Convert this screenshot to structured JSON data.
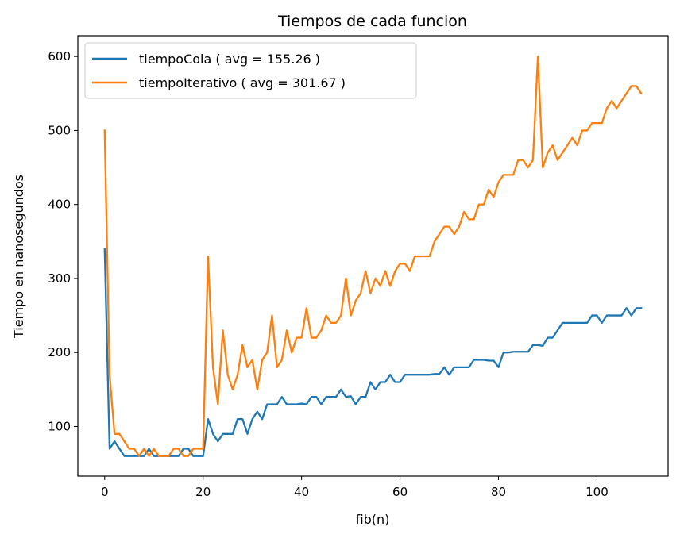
{
  "chart_data": {
    "type": "line",
    "title": "Tiempos de cada funcion",
    "xlabel": "fib(n)",
    "ylabel": "Tiempo en nanosegundos",
    "xlim": [
      -5.45,
      114.45
    ],
    "ylim": [
      32.95,
      628.05
    ],
    "xticks": [
      0,
      20,
      40,
      60,
      80,
      100
    ],
    "yticks": [
      100,
      200,
      300,
      400,
      500,
      600
    ],
    "grid": false,
    "legend_position": "top-left",
    "series": [
      {
        "name": "tiempoCola ( avg = 155.26 )",
        "color": "#1f77b4",
        "x": [
          0,
          1,
          2,
          3,
          4,
          5,
          6,
          7,
          8,
          9,
          10,
          11,
          12,
          13,
          14,
          15,
          16,
          17,
          18,
          19,
          20,
          21,
          22,
          23,
          24,
          25,
          26,
          27,
          28,
          29,
          30,
          31,
          32,
          33,
          34,
          35,
          36,
          37,
          38,
          39,
          40,
          41,
          42,
          43,
          44,
          45,
          46,
          47,
          48,
          49,
          50,
          51,
          52,
          53,
          54,
          55,
          56,
          57,
          58,
          59,
          60,
          61,
          62,
          63,
          64,
          65,
          66,
          67,
          68,
          69,
          70,
          71,
          72,
          73,
          74,
          75,
          76,
          77,
          78,
          79,
          80,
          81,
          82,
          83,
          84,
          85,
          86,
          87,
          88,
          89,
          90,
          91,
          92,
          93,
          94,
          95,
          96,
          97,
          98,
          99,
          100,
          101,
          102,
          103,
          104,
          105,
          106,
          107,
          108,
          109
        ],
        "values": [
          340,
          70,
          80,
          70,
          60,
          60,
          60,
          60,
          60,
          70,
          60,
          60,
          60,
          60,
          60,
          60,
          70,
          70,
          60,
          60,
          60,
          110,
          90,
          80,
          90,
          90,
          90,
          110,
          110,
          90,
          110,
          120,
          110,
          130,
          130,
          130,
          140,
          130,
          130,
          130,
          131,
          130,
          140,
          140,
          130,
          140,
          140,
          140,
          150,
          140,
          141,
          130,
          140,
          140,
          160,
          150,
          160,
          160,
          170,
          160,
          160,
          170,
          170,
          170,
          170,
          170,
          170,
          171,
          171,
          180,
          170,
          180,
          180,
          180,
          180,
          190,
          190,
          190,
          189,
          189,
          180,
          200,
          200,
          201,
          201,
          201,
          201,
          210,
          210,
          209,
          220,
          220,
          230,
          240,
          240,
          240,
          240,
          240,
          240,
          250,
          250,
          240,
          250,
          250,
          250,
          250,
          260,
          250,
          260,
          260
        ]
      },
      {
        "name": "tiempoIterativo ( avg = 301.67 )",
        "color": "#ff7f0e",
        "x": [
          0,
          1,
          2,
          3,
          4,
          5,
          6,
          7,
          8,
          9,
          10,
          11,
          12,
          13,
          14,
          15,
          16,
          17,
          18,
          19,
          20,
          21,
          22,
          23,
          24,
          25,
          26,
          27,
          28,
          29,
          30,
          31,
          32,
          33,
          34,
          35,
          36,
          37,
          38,
          39,
          40,
          41,
          42,
          43,
          44,
          45,
          46,
          47,
          48,
          49,
          50,
          51,
          52,
          53,
          54,
          55,
          56,
          57,
          58,
          59,
          60,
          61,
          62,
          63,
          64,
          65,
          66,
          67,
          68,
          69,
          70,
          71,
          72,
          73,
          74,
          75,
          76,
          77,
          78,
          79,
          80,
          81,
          82,
          83,
          84,
          85,
          86,
          87,
          88,
          89,
          90,
          91,
          92,
          93,
          94,
          95,
          96,
          97,
          98,
          99,
          100,
          101,
          102,
          103,
          104,
          105,
          106,
          107,
          108,
          109
        ],
        "values": [
          500,
          170,
          90,
          90,
          80,
          70,
          70,
          60,
          70,
          60,
          70,
          60,
          60,
          60,
          70,
          70,
          60,
          60,
          70,
          70,
          70,
          330,
          180,
          130,
          230,
          170,
          150,
          170,
          210,
          180,
          190,
          150,
          190,
          200,
          250,
          180,
          190,
          230,
          200,
          220,
          220,
          260,
          220,
          220,
          230,
          250,
          240,
          240,
          250,
          300,
          250,
          270,
          280,
          310,
          280,
          300,
          290,
          310,
          290,
          310,
          320,
          320,
          310,
          330,
          330,
          330,
          330,
          350,
          360,
          370,
          370,
          360,
          370,
          390,
          380,
          380,
          400,
          400,
          420,
          410,
          430,
          440,
          440,
          440,
          460,
          460,
          450,
          460,
          600,
          450,
          470,
          480,
          460,
          470,
          480,
          490,
          480,
          500,
          500,
          510,
          510,
          510,
          530,
          540,
          530,
          540,
          550,
          560,
          560,
          550
        ]
      }
    ]
  }
}
